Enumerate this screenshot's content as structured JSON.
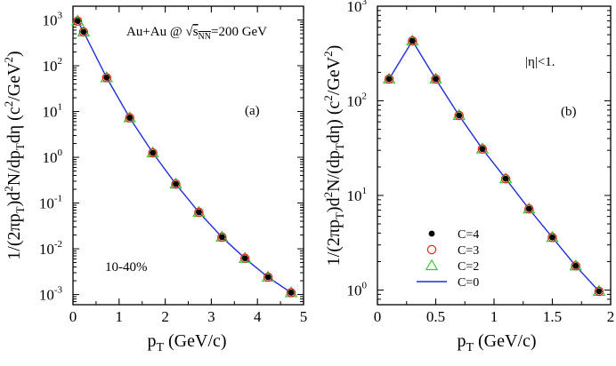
{
  "chart_data": [
    {
      "id": "a",
      "type": "scatter",
      "panel_label": "(a)",
      "annotation": "Au+Au @ √s_NN=200 GeV",
      "annotation_parts": {
        "prefix": "Au+Au @ ",
        "sqrt_s": "s",
        "sqrt_sub": "NN",
        "suffix": "=200 GeV"
      },
      "centrality": "10-40%",
      "xlabel": "p_T (GeV/c)",
      "ylabel": "1/(2πp_T)d²N/dp_Tdη (c²/GeV²)",
      "xlim": [
        0,
        5
      ],
      "ylim": [
        0.0006,
        2000
      ],
      "yscale": "log",
      "x_ticks": [
        0,
        1,
        2,
        3,
        4,
        5
      ],
      "y_ticks_exp": [
        -3,
        -2,
        -1,
        0,
        1,
        2,
        3
      ],
      "series": [
        {
          "name": "C=4",
          "marker": "filled-circle",
          "color": "#000000",
          "x": [
            0.1,
            0.23,
            0.73,
            1.23,
            1.73,
            2.23,
            2.73,
            3.23,
            3.73,
            4.23,
            4.73
          ],
          "y": [
            950,
            550,
            55,
            7.3,
            1.25,
            0.26,
            0.063,
            0.018,
            0.0062,
            0.0024,
            0.0011
          ]
        },
        {
          "name": "C=3",
          "marker": "open-circle",
          "color": "#e0241f",
          "x": [
            0.1,
            0.23,
            0.73,
            1.23,
            1.73,
            2.23,
            2.73,
            3.23,
            3.73,
            4.23,
            4.73
          ],
          "y": [
            950,
            550,
            55,
            7.3,
            1.25,
            0.26,
            0.063,
            0.018,
            0.0062,
            0.0024,
            0.0011
          ]
        },
        {
          "name": "C=2",
          "marker": "open-triangle",
          "color": "#33cc33",
          "x": [
            0.1,
            0.23,
            0.73,
            1.23,
            1.73,
            2.23,
            2.73,
            3.23,
            3.73,
            4.23,
            4.73
          ],
          "y": [
            950,
            550,
            55,
            7.3,
            1.25,
            0.26,
            0.063,
            0.018,
            0.0062,
            0.0024,
            0.0011
          ]
        },
        {
          "name": "C=0",
          "marker": "line",
          "color": "#1f2fd6",
          "x": [
            0.1,
            0.23,
            0.73,
            1.23,
            1.73,
            2.23,
            2.73,
            3.23,
            3.73,
            4.23,
            4.73
          ],
          "y": [
            950,
            550,
            55,
            7.3,
            1.25,
            0.26,
            0.063,
            0.018,
            0.0062,
            0.0024,
            0.0011
          ]
        }
      ]
    },
    {
      "id": "b",
      "type": "scatter",
      "panel_label": "(b)",
      "annotation": "|η|<1.",
      "xlabel": "p_T (GeV/c)",
      "ylabel": "1/(2πp_T)d²N/(dp_Tdη) (c²/GeV²)",
      "xlim": [
        0,
        2
      ],
      "ylim": [
        0.7,
        1000
      ],
      "yscale": "log",
      "x_ticks": [
        0,
        0.5,
        1,
        1.5,
        2
      ],
      "y_ticks_exp": [
        0,
        1,
        2,
        3
      ],
      "legend": {
        "placement": "bottom-left",
        "entries": [
          "C=4",
          "C=3",
          "C=2",
          "C=0"
        ]
      },
      "series": [
        {
          "name": "C=4",
          "marker": "filled-circle",
          "color": "#000000",
          "x": [
            0.1,
            0.3,
            0.5,
            0.7,
            0.9,
            1.1,
            1.3,
            1.5,
            1.7,
            1.9
          ],
          "y": [
            170,
            430,
            170,
            70,
            31,
            15,
            7.2,
            3.6,
            1.8,
            0.97
          ]
        },
        {
          "name": "C=3",
          "marker": "open-circle",
          "color": "#e0241f",
          "x": [
            0.1,
            0.3,
            0.5,
            0.7,
            0.9,
            1.1,
            1.3,
            1.5,
            1.7,
            1.9
          ],
          "y": [
            170,
            430,
            170,
            70,
            31,
            15,
            7.2,
            3.6,
            1.8,
            0.97
          ]
        },
        {
          "name": "C=2",
          "marker": "open-triangle",
          "color": "#33cc33",
          "x": [
            0.1,
            0.3,
            0.5,
            0.7,
            0.9,
            1.1,
            1.3,
            1.5,
            1.7,
            1.9
          ],
          "y": [
            170,
            430,
            170,
            70,
            31,
            15,
            7.2,
            3.6,
            1.8,
            0.97
          ]
        },
        {
          "name": "C=0",
          "marker": "line",
          "color": "#1f2fd6",
          "x": [
            0.1,
            0.3,
            0.5,
            0.7,
            0.9,
            1.1,
            1.3,
            1.5,
            1.7,
            1.9
          ],
          "y": [
            170,
            430,
            170,
            70,
            31,
            15,
            7.2,
            3.6,
            1.8,
            0.97
          ]
        }
      ]
    }
  ]
}
